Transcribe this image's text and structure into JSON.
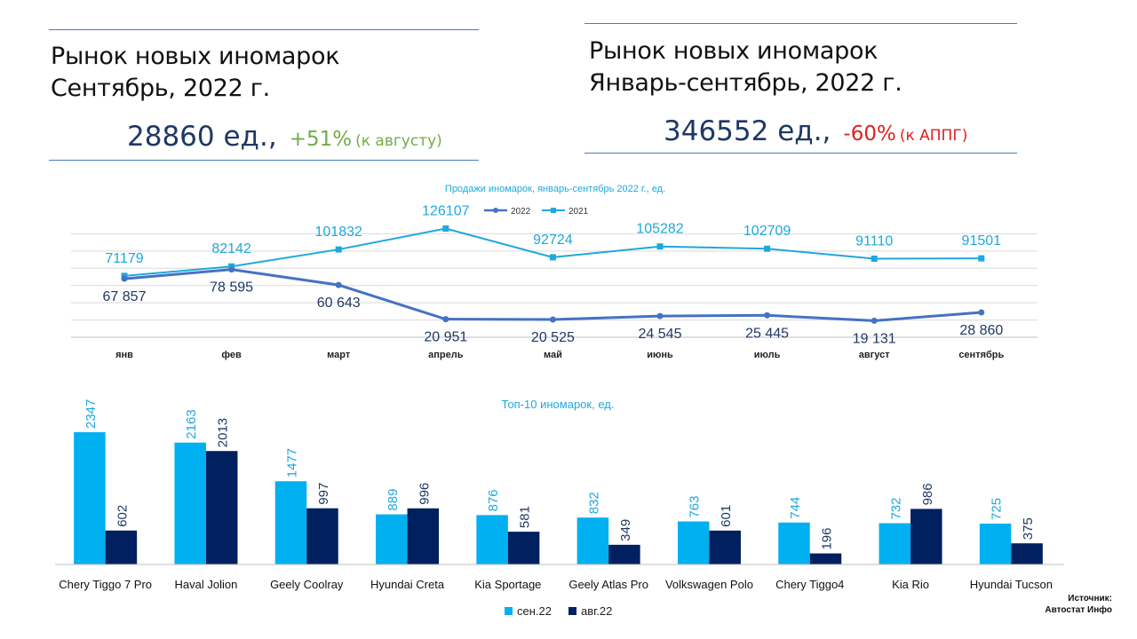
{
  "left_panel": {
    "title_line1": "Рынок новых иномарок",
    "title_line2": "Сентябрь, 2022 г.",
    "total": "28860 ед.,",
    "change": "+51%",
    "change_note": "(к августу)",
    "change_color": "#70ad47"
  },
  "right_panel": {
    "title_line1": "Рынок новых иномарок",
    "title_line2": "Январь-сентябрь, 2022 г.",
    "total": "346552 ед.,",
    "change": "-60%",
    "change_note": "(к АППГ)",
    "change_color": "#e02020"
  },
  "source": {
    "line1": "Источник:",
    "line2": "Автостат Инфо"
  },
  "chart_data": [
    {
      "type": "line",
      "title": "Продажи иномарок, январь-сентябрь 2022 г., ед.",
      "categories": [
        "янв",
        "фев",
        "март",
        "апрель",
        "май",
        "июнь",
        "июль",
        "август",
        "сентябрь"
      ],
      "series": [
        {
          "name": "2022",
          "color": "#4472c4",
          "values": [
            67857,
            78595,
            60643,
            20951,
            20525,
            24545,
            25445,
            19131,
            28860
          ],
          "labels": [
            "67 857",
            "78 595",
            "60 643",
            "20 951",
            "20 525",
            "24 545",
            "25 445",
            "19 131",
            "28 860"
          ]
        },
        {
          "name": "2021",
          "color": "#1fa8dc",
          "values": [
            71179,
            82142,
            101832,
            126107,
            92724,
            105282,
            102709,
            91110,
            91501
          ],
          "labels": [
            "71179",
            "82142",
            "101832",
            "126107",
            "92724",
            "105282",
            "102709",
            "91110",
            "91501"
          ]
        }
      ],
      "grid": true,
      "legend": "top-center"
    },
    {
      "type": "bar",
      "title": "Топ-10 иномарок, ед.",
      "categories": [
        "Chery Tiggo 7 Pro",
        "Haval Jolion",
        "Geely Coolray",
        "Hyundai Creta",
        "Kia Sportage",
        "Geely Atlas Pro",
        "Volkswagen Polo",
        "Chery Tiggo4",
        "Kia Rio",
        "Hyundai Tucson"
      ],
      "series": [
        {
          "name": "сен.22",
          "color": "#00b0f0",
          "values": [
            2347,
            2163,
            1477,
            889,
            876,
            832,
            763,
            744,
            732,
            725
          ]
        },
        {
          "name": "авг.22",
          "color": "#002060",
          "values": [
            602,
            2013,
            997,
            996,
            581,
            349,
            601,
            196,
            986,
            375
          ]
        }
      ],
      "legend": "bottom-center"
    }
  ]
}
